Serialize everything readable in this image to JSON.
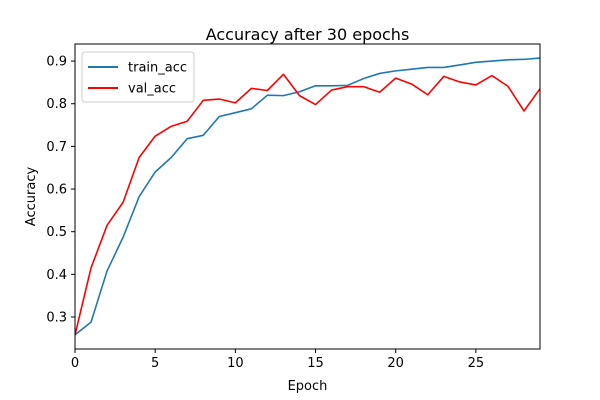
{
  "chart_data": {
    "type": "line",
    "title": "Accuracy after 30 epochs",
    "xlabel": "Epoch",
    "ylabel": "Accuracy",
    "xlim": [
      0,
      29
    ],
    "ylim": [
      0.225,
      0.94
    ],
    "x_ticks": [
      0,
      5,
      10,
      15,
      20,
      25
    ],
    "y_ticks": [
      0.3,
      0.4,
      0.5,
      0.6,
      0.7,
      0.8,
      0.9
    ],
    "grid": false,
    "legend_position": "top-left",
    "x": [
      0,
      1,
      2,
      3,
      4,
      5,
      6,
      7,
      8,
      9,
      10,
      11,
      12,
      13,
      14,
      15,
      16,
      17,
      18,
      19,
      20,
      21,
      22,
      23,
      24,
      25,
      26,
      27,
      28,
      29
    ],
    "series": [
      {
        "name": "train_acc",
        "color": "#1f77b4",
        "values": [
          0.258,
          0.288,
          0.408,
          0.487,
          0.582,
          0.64,
          0.674,
          0.718,
          0.726,
          0.77,
          0.779,
          0.788,
          0.82,
          0.819,
          0.828,
          0.842,
          0.842,
          0.843,
          0.859,
          0.871,
          0.877,
          0.881,
          0.885,
          0.885,
          0.891,
          0.897,
          0.9,
          0.903,
          0.904,
          0.907
        ]
      },
      {
        "name": "val_acc",
        "color": "#ff0000",
        "values": [
          0.258,
          0.415,
          0.515,
          0.569,
          0.674,
          0.724,
          0.747,
          0.759,
          0.808,
          0.811,
          0.802,
          0.836,
          0.831,
          0.869,
          0.819,
          0.798,
          0.832,
          0.84,
          0.84,
          0.827,
          0.86,
          0.846,
          0.821,
          0.864,
          0.851,
          0.844,
          0.866,
          0.841,
          0.783,
          0.835
        ]
      }
    ]
  }
}
